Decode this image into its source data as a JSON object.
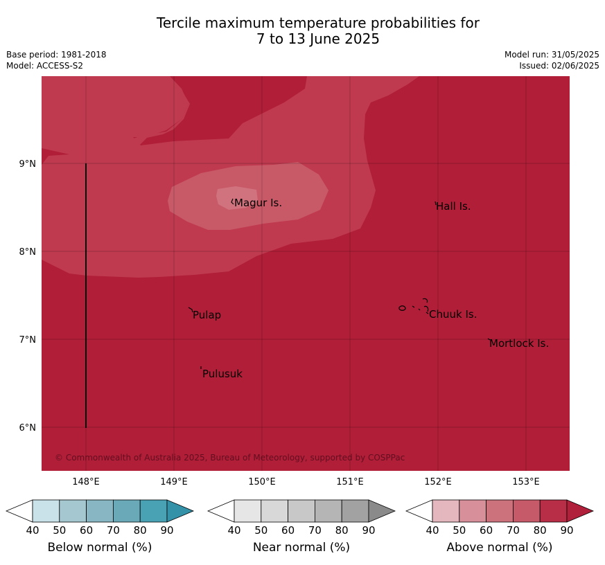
{
  "title": {
    "line1": "Tercile maximum temperature probabilities for",
    "line2": "7 to 13 June 2025"
  },
  "meta": {
    "base_period": "Base period: 1981-2018",
    "model": "Model: ACCESS-S2",
    "model_run": "Model run: 31/05/2025",
    "issued": "Issued: 02/06/2025"
  },
  "map": {
    "lat_ticks": [
      "9°N",
      "8°N",
      "7°N",
      "6°N"
    ],
    "lon_ticks": [
      "148°E",
      "149°E",
      "150°E",
      "151°E",
      "152°E",
      "153°E"
    ],
    "places": [
      {
        "name": "Magur Is."
      },
      {
        "name": "Hall Is."
      },
      {
        "name": "Pulap"
      },
      {
        "name": "Chuuk Is."
      },
      {
        "name": "Mortlock Is."
      },
      {
        "name": "Pulusuk"
      }
    ],
    "copyright": "© Commonwealth of Australia 2025, Bureau of Meteorology, supported by COSPPac",
    "colors": {
      "above_90": "#b01e38",
      "above_80": "#bf3a4f",
      "above_70": "#c85a68",
      "above_60": "#d1737e"
    }
  },
  "colorbars": [
    {
      "label": "Below normal (%)",
      "ticks": [
        "40",
        "50",
        "60",
        "70",
        "80",
        "90"
      ],
      "colors": [
        "#ffffff",
        "#c9e1e8",
        "#a5c7cf",
        "#88b7c3",
        "#6aa9b8",
        "#48a2b4",
        "#3391a8"
      ]
    },
    {
      "label": "Near normal (%)",
      "ticks": [
        "40",
        "50",
        "60",
        "70",
        "80",
        "90"
      ],
      "colors": [
        "#ffffff",
        "#e6e6e6",
        "#d8d8d8",
        "#c8c8c8",
        "#b5b5b5",
        "#a2a2a2",
        "#8a8a8a"
      ]
    },
    {
      "label": "Above normal (%)",
      "ticks": [
        "40",
        "50",
        "60",
        "70",
        "80",
        "90"
      ],
      "colors": [
        "#ffffff",
        "#e3b7bd",
        "#d78f99",
        "#cc727d",
        "#c75a69",
        "#b82e46",
        "#b0203b"
      ]
    }
  ]
}
